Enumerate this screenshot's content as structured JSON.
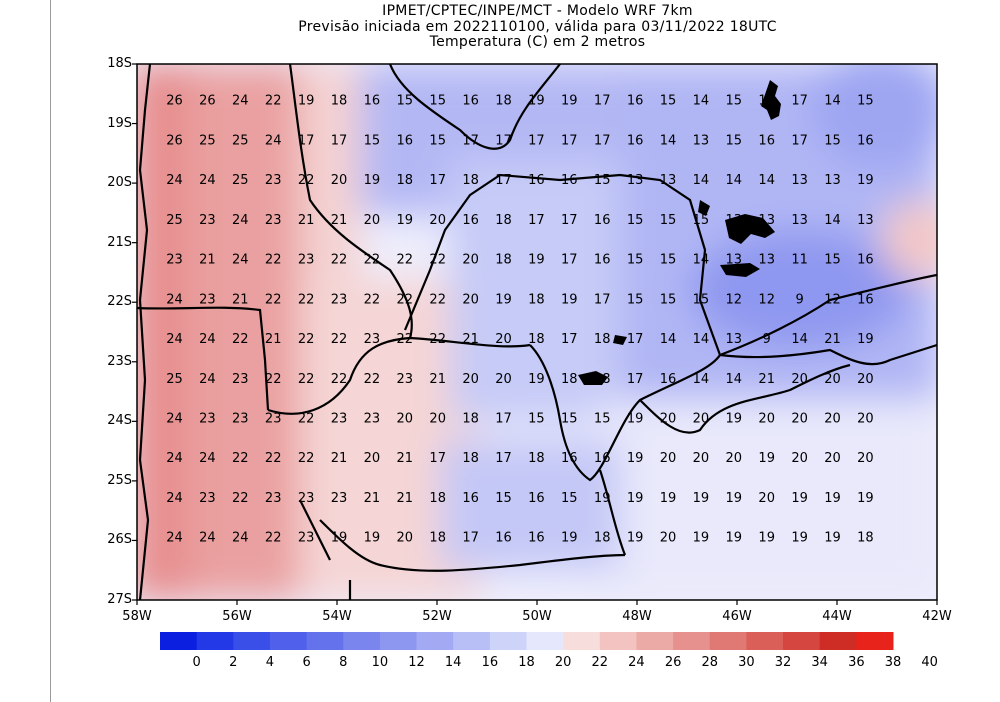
{
  "title": {
    "line1": "IPMET/CPTEC/INPE/MCT - Modelo WRF 7km",
    "line2": "Previsão iniciada em 2022110100, válida para 03/11/2022 18UTC",
    "line3": "Temperatura (C) em 2 metros"
  },
  "map": {
    "lat_labels": [
      "18S",
      "19S",
      "20S",
      "21S",
      "22S",
      "23S",
      "24S",
      "25S",
      "26S",
      "27S"
    ],
    "lon_labels": [
      "58W",
      "56W",
      "54W",
      "52W",
      "50W",
      "48W",
      "46W",
      "44W",
      "42W"
    ],
    "lat_range": [
      -27,
      -18
    ],
    "lon_range": [
      -58,
      -42
    ],
    "grid_lon_start": -57.8,
    "grid_lon_step": 0.658,
    "grid_lat_start": -18.6,
    "grid_lat_step": 0.667,
    "temperature_rows": [
      [
        26,
        26,
        24,
        22,
        19,
        18,
        16,
        15,
        15,
        16,
        18,
        19,
        19,
        17,
        16,
        15,
        14,
        15,
        18,
        17,
        14,
        15
      ],
      [
        26,
        25,
        25,
        24,
        17,
        17,
        15,
        16,
        15,
        17,
        17,
        17,
        17,
        17,
        16,
        14,
        13,
        15,
        16,
        17,
        15,
        16
      ],
      [
        24,
        24,
        25,
        23,
        22,
        20,
        19,
        18,
        17,
        18,
        17,
        16,
        16,
        15,
        13,
        13,
        14,
        14,
        14,
        13,
        13,
        19
      ],
      [
        25,
        23,
        24,
        23,
        21,
        21,
        20,
        19,
        20,
        16,
        18,
        17,
        17,
        16,
        15,
        15,
        15,
        13,
        13,
        13,
        14,
        13
      ],
      [
        23,
        21,
        24,
        22,
        23,
        22,
        22,
        22,
        22,
        20,
        18,
        19,
        17,
        16,
        15,
        15,
        14,
        13,
        13,
        11,
        15,
        16
      ],
      [
        24,
        23,
        21,
        22,
        22,
        23,
        22,
        22,
        22,
        20,
        19,
        18,
        19,
        17,
        15,
        15,
        15,
        12,
        12,
        9,
        12,
        16
      ],
      [
        24,
        24,
        22,
        21,
        22,
        22,
        23,
        22,
        22,
        21,
        20,
        18,
        17,
        18,
        17,
        14,
        14,
        13,
        9,
        14,
        21,
        19
      ],
      [
        25,
        24,
        23,
        22,
        22,
        22,
        22,
        23,
        21,
        20,
        20,
        19,
        18,
        18,
        17,
        16,
        14,
        14,
        21,
        20,
        20,
        20
      ],
      [
        24,
        23,
        23,
        23,
        22,
        23,
        23,
        20,
        20,
        18,
        17,
        15,
        15,
        15,
        19,
        20,
        20,
        19,
        20,
        20,
        20,
        20
      ],
      [
        24,
        24,
        22,
        22,
        22,
        21,
        20,
        21,
        17,
        18,
        17,
        18,
        16,
        16,
        19,
        20,
        20,
        20,
        19,
        20,
        20,
        20
      ],
      [
        24,
        23,
        22,
        23,
        23,
        23,
        21,
        21,
        18,
        16,
        15,
        16,
        15,
        19,
        19,
        19,
        19,
        19,
        20,
        19,
        19,
        19
      ],
      [
        24,
        24,
        24,
        22,
        23,
        19,
        19,
        20,
        18,
        17,
        16,
        16,
        19,
        18,
        19,
        20,
        19,
        19,
        19,
        19,
        19,
        18
      ]
    ]
  },
  "colorbar": {
    "labels": [
      "0",
      "2",
      "4",
      "6",
      "8",
      "10",
      "12",
      "14",
      "16",
      "18",
      "20",
      "22",
      "24",
      "26",
      "28",
      "30",
      "32",
      "34",
      "36",
      "38",
      "40"
    ],
    "colors": [
      "#0a1fe0",
      "#2338e6",
      "#3a4fe8",
      "#5060ea",
      "#6472ec",
      "#7a85ee",
      "#8e97f0",
      "#a3aaf3",
      "#b8bef6",
      "#ced3f9",
      "#e5e8fc",
      "#f7dedd",
      "#f2c3c1",
      "#ecaaa7",
      "#e6918d",
      "#e07873",
      "#da5f59",
      "#d4463f",
      "#ce2d25",
      "#e8231b"
    ]
  },
  "colors": {
    "land_warm": "#e8928f",
    "land_cool": "#aab0f2",
    "coast": "#000000"
  }
}
